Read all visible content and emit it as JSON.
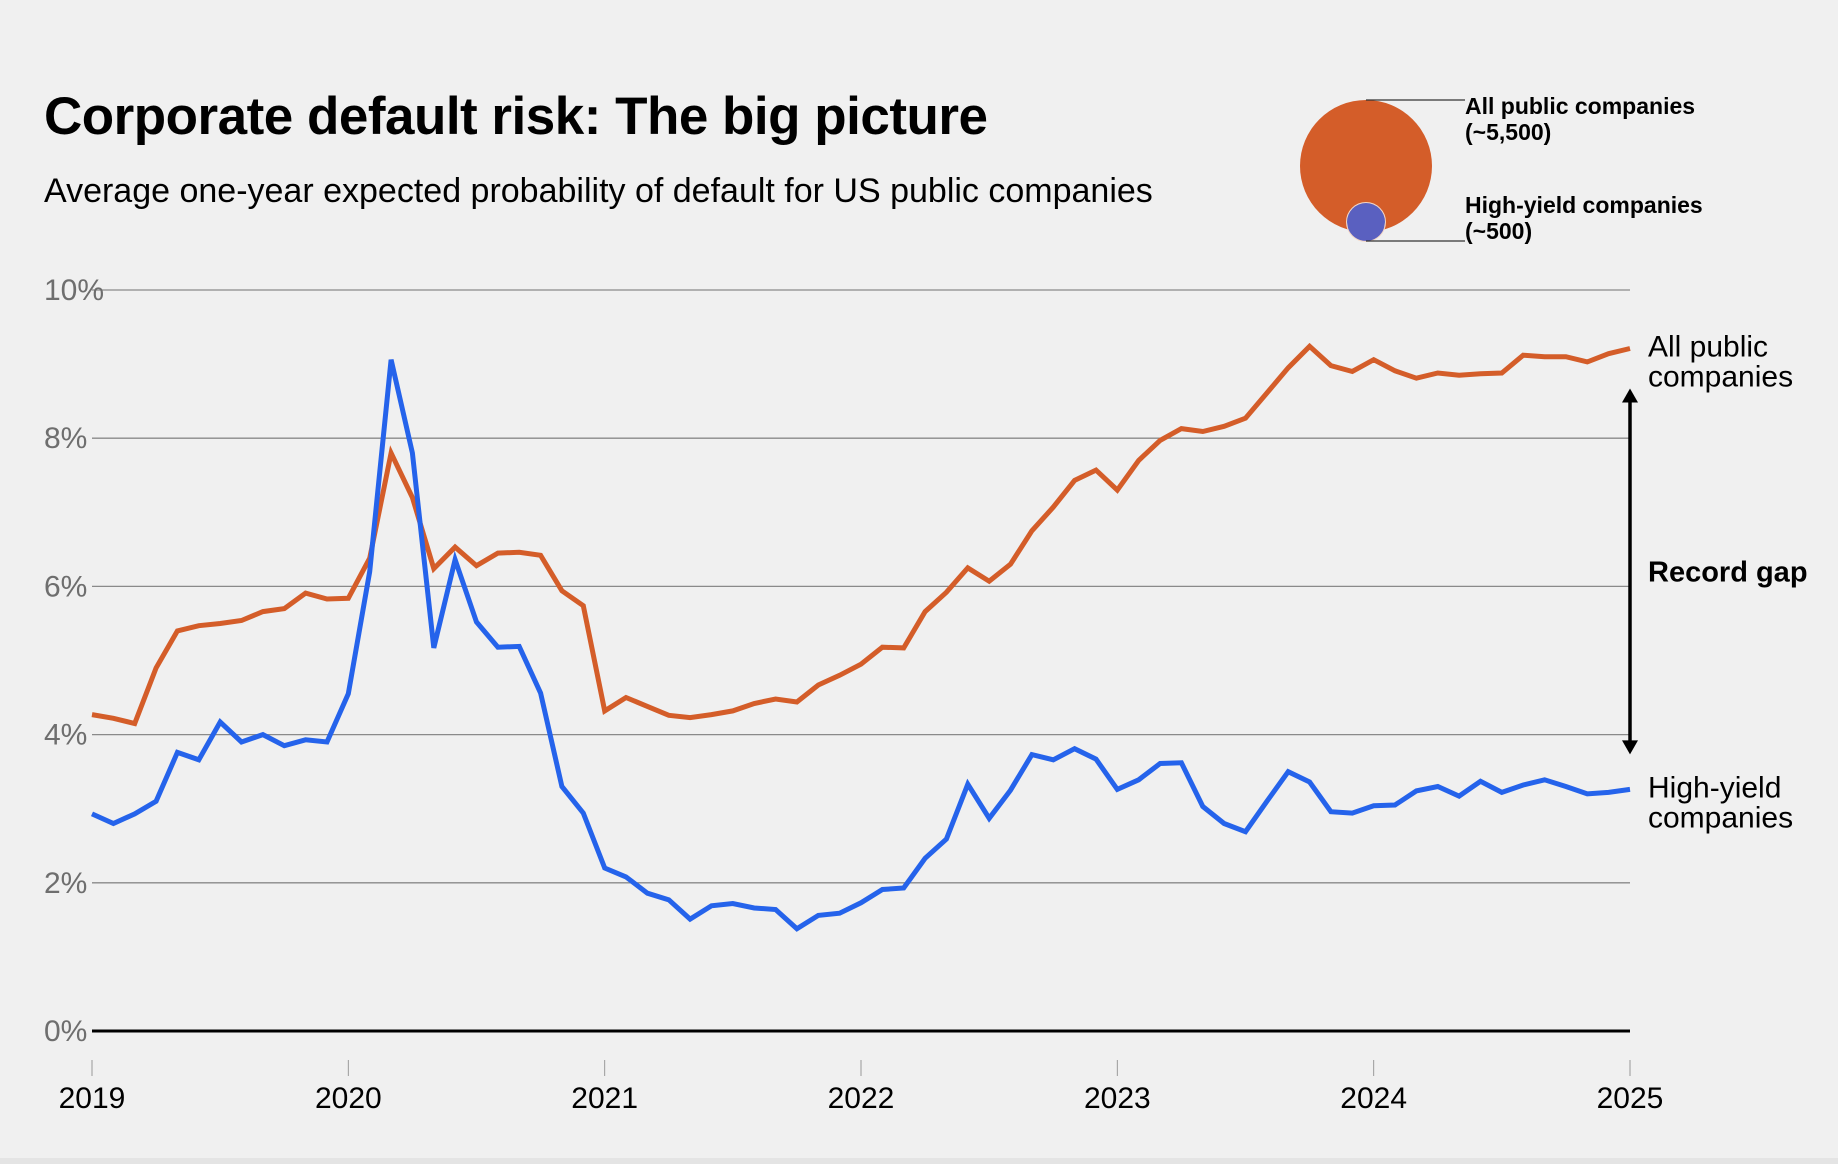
{
  "header": {
    "title": "Corporate default risk: The big picture",
    "subtitle": "Average one-year expected probability of default for US public companies"
  },
  "bubble_legend": {
    "items": [
      {
        "label": "All public companies",
        "count": "(~5,500)",
        "color": "#d45d29"
      },
      {
        "label": "High-yield companies",
        "count": "(~500)",
        "color": "#5a60c0"
      }
    ]
  },
  "annotation": {
    "gap_label": "Record gap"
  },
  "chart_data": {
    "type": "line",
    "title": "Corporate default risk: The big picture",
    "subtitle": "Average one-year expected probability of default for US public companies",
    "xlabel": "",
    "ylabel": "",
    "x_start": 2019,
    "x_end": 2025,
    "x_step_months": 1,
    "xlim": [
      2019,
      2025
    ],
    "ylim": [
      0,
      10
    ],
    "y_ticks": [
      0,
      2,
      4,
      6,
      8,
      10
    ],
    "y_tick_labels": [
      "0%",
      "2%",
      "4%",
      "6%",
      "8%",
      "10%"
    ],
    "x_ticks": [
      2019,
      2020,
      2021,
      2022,
      2023,
      2024,
      2025
    ],
    "x_tick_labels": [
      "2019",
      "2020",
      "2021",
      "2022",
      "2023",
      "2024",
      "2025"
    ],
    "grid": true,
    "legend": "end-of-line labels (right)",
    "series": [
      {
        "name": "All public companies",
        "end_label": [
          "All public",
          "companies"
        ],
        "color": "#d45d29",
        "values": [
          4.27,
          4.22,
          4.15,
          4.9,
          5.4,
          5.47,
          5.5,
          5.54,
          5.66,
          5.7,
          5.91,
          5.83,
          5.84,
          6.38,
          7.8,
          7.2,
          6.24,
          6.53,
          6.28,
          6.45,
          6.46,
          6.42,
          5.94,
          5.74,
          4.32,
          4.5,
          4.38,
          4.26,
          4.23,
          4.27,
          4.32,
          4.42,
          4.48,
          4.44,
          4.67,
          4.8,
          4.95,
          5.18,
          5.17,
          5.66,
          5.92,
          6.25,
          6.07,
          6.3,
          6.75,
          7.07,
          7.43,
          7.57,
          7.3,
          7.7,
          7.97,
          8.13,
          8.09,
          8.16,
          8.27,
          8.61,
          8.95,
          9.24,
          8.98,
          8.9,
          9.06,
          8.91,
          8.81,
          8.88,
          8.85,
          8.87,
          8.88,
          9.12,
          9.1,
          9.1,
          9.03,
          9.14,
          9.21
        ]
      },
      {
        "name": "High-yield companies",
        "end_label": [
          "High-yield",
          "companies"
        ],
        "color": "#2563eb",
        "values": [
          2.93,
          2.8,
          2.93,
          3.1,
          3.76,
          3.66,
          4.17,
          3.9,
          4.0,
          3.85,
          3.93,
          3.9,
          4.55,
          6.2,
          9.06,
          7.8,
          5.17,
          6.36,
          5.52,
          5.18,
          5.19,
          4.56,
          3.3,
          2.94,
          2.2,
          2.08,
          1.86,
          1.77,
          1.51,
          1.69,
          1.72,
          1.66,
          1.64,
          1.38,
          1.56,
          1.59,
          1.73,
          1.91,
          1.93,
          2.33,
          2.59,
          3.33,
          2.87,
          3.25,
          3.73,
          3.66,
          3.81,
          3.67,
          3.26,
          3.39,
          3.61,
          3.62,
          3.03,
          2.8,
          2.69,
          3.1,
          3.5,
          3.36,
          2.96,
          2.94,
          3.04,
          3.05,
          3.24,
          3.3,
          3.17,
          3.37,
          3.22,
          3.32,
          3.39,
          3.3,
          3.2,
          3.22,
          3.26
        ]
      }
    ],
    "annotations": [
      {
        "type": "double-arrow",
        "text": "Record gap",
        "between": [
          "All public companies",
          "High-yield companies"
        ],
        "at": "end"
      }
    ]
  }
}
